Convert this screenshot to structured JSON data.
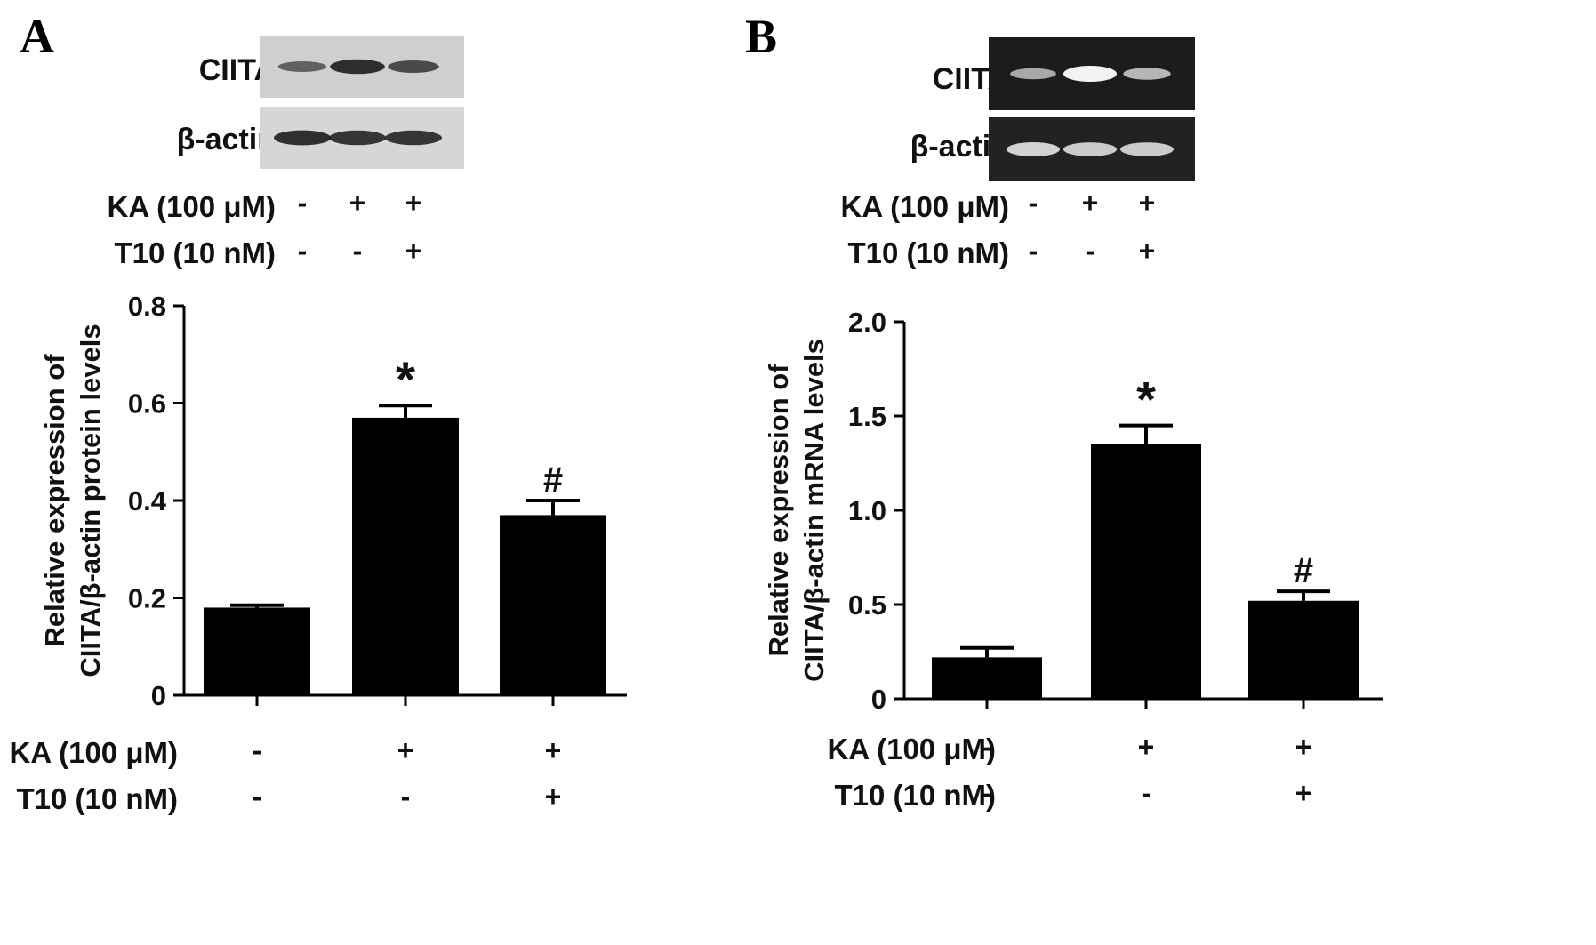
{
  "panels": [
    {
      "letter": "A",
      "blot": {
        "target_label": "CIITA",
        "control_label": "β-actin",
        "target_band_intensities": [
          0.4,
          0.85,
          0.6
        ],
        "control_band_intensities": [
          0.85,
          0.8,
          0.8
        ],
        "background": "gray"
      },
      "top_conditions": {
        "ka_label": "KA (100 μM)",
        "ka_signs": [
          "-",
          "+",
          "+"
        ],
        "t10_label": "T10 (10 nM)",
        "t10_signs": [
          "-",
          "-",
          "+"
        ]
      },
      "bottom_conditions": {
        "ka_label": "KA (100 μM)",
        "ka_signs": [
          "-",
          "+",
          "+"
        ],
        "t10_label": "T10 (10 nM)",
        "t10_signs": [
          "-",
          "-",
          "+"
        ]
      }
    },
    {
      "letter": "B",
      "blot": {
        "target_label": "CIITA",
        "control_label": "β-actin",
        "target_band_intensities": [
          0.45,
          1.0,
          0.55
        ],
        "control_band_intensities": [
          0.75,
          0.7,
          0.7
        ],
        "background": "dark"
      },
      "top_conditions": {
        "ka_label": "KA (100 μM)",
        "ka_signs": [
          "-",
          "+",
          "+"
        ],
        "t10_label": "T10 (10 nM)",
        "t10_signs": [
          "-",
          "-",
          "+"
        ]
      },
      "bottom_conditions": {
        "ka_label": "KA (100 μM)",
        "ka_signs": [
          "-",
          "+",
          "+"
        ],
        "t10_label": "T10 (10 nM)",
        "t10_signs": [
          "-",
          "-",
          "+"
        ]
      }
    }
  ],
  "chart_data": [
    {
      "type": "bar",
      "categories": [
        "",
        "",
        ""
      ],
      "values": [
        0.18,
        0.57,
        0.37
      ],
      "error": [
        0.005,
        0.025,
        0.03
      ],
      "annotations": [
        "",
        "*",
        "#"
      ],
      "ylabel_line1": "Relative expression of",
      "ylabel_line2": "CIITA/β-actin protein levels",
      "ylim": [
        0,
        0.8
      ],
      "yticks": [
        0,
        0.2,
        0.4,
        0.6,
        0.8
      ],
      "ytick_labels": [
        "0",
        "0.2",
        "0.4",
        "0.6",
        "0.8"
      ],
      "bar_color": "#000000"
    },
    {
      "type": "bar",
      "categories": [
        "",
        "",
        ""
      ],
      "values": [
        0.22,
        1.35,
        0.52
      ],
      "error": [
        0.05,
        0.1,
        0.05
      ],
      "annotations": [
        "",
        "*",
        "#"
      ],
      "ylabel_line1": "Relative expression of",
      "ylabel_line2": "CIITA/β-actin mRNA levels",
      "ylim": [
        0,
        2.0
      ],
      "yticks": [
        0,
        0.5,
        1.0,
        1.5,
        2.0
      ],
      "ytick_labels": [
        "0",
        "0.5",
        "1.0",
        "1.5",
        "2.0"
      ],
      "bar_color": "#000000"
    }
  ]
}
